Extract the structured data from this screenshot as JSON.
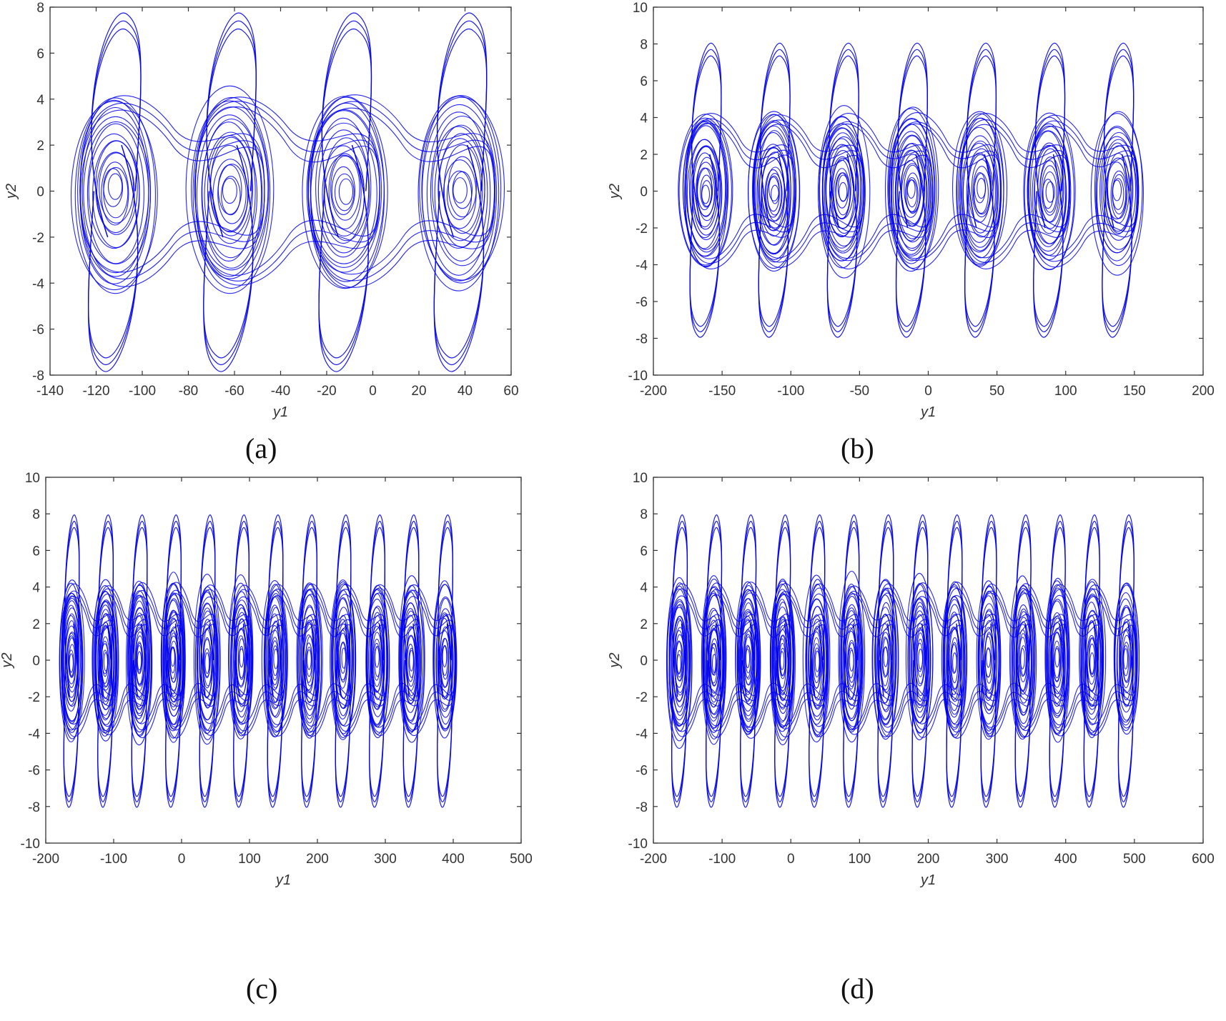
{
  "figure": {
    "background": "#ffffff",
    "line_color": "#0000ee",
    "axis_color": "#333333"
  },
  "chart_data": [
    {
      "id": "a",
      "caption": "(a)",
      "type": "line",
      "title": "",
      "xlabel": "y1",
      "ylabel": "y2",
      "xlim": [
        -140,
        60
      ],
      "ylim": [
        -8,
        8
      ],
      "xticks": [
        "-140",
        "-120",
        "-100",
        "-80",
        "-60",
        "-40",
        "-20",
        "0",
        "20",
        "40",
        "60"
      ],
      "yticks": [
        "-8",
        "-6",
        "-4",
        "-2",
        "0",
        "2",
        "4",
        "6",
        "8"
      ],
      "grid": false,
      "legend": null,
      "description": "Multi-scroll chaotic attractor phase portrait (y1 vs y2) with 4 scrolls",
      "scroll_centers_y1": [
        -112,
        -62,
        -12,
        38
      ],
      "y2_peak_approx": 7.7,
      "y2_trough_approx": -7.8
    },
    {
      "id": "b",
      "caption": "(b)",
      "type": "line",
      "title": "",
      "xlabel": "y1",
      "ylabel": "y2",
      "xlim": [
        -200,
        200
      ],
      "ylim": [
        -10,
        10
      ],
      "xticks": [
        "-200",
        "-150",
        "-100",
        "-50",
        "0",
        "50",
        "100",
        "150",
        "200"
      ],
      "yticks": [
        "-10",
        "-8",
        "-6",
        "-4",
        "-2",
        "0",
        "2",
        "4",
        "6",
        "8",
        "10"
      ],
      "grid": false,
      "legend": null,
      "description": "Multi-scroll chaotic attractor phase portrait (y1 vs y2) with 7 scrolls",
      "scroll_centers_y1": [
        -162,
        -112,
        -62,
        -12,
        38,
        88,
        138
      ],
      "y2_peak_approx": 8.0,
      "y2_trough_approx": -7.9
    },
    {
      "id": "c",
      "caption": "(c)",
      "type": "line",
      "title": "",
      "xlabel": "y1",
      "ylabel": "y2",
      "xlim": [
        -200,
        500
      ],
      "ylim": [
        -10,
        10
      ],
      "xticks": [
        "-200",
        "-100",
        "0",
        "100",
        "200",
        "300",
        "400",
        "500"
      ],
      "yticks": [
        "-10",
        "-8",
        "-6",
        "-4",
        "-2",
        "0",
        "2",
        "4",
        "6",
        "8",
        "10"
      ],
      "grid": false,
      "legend": null,
      "description": "Multi-scroll chaotic attractor phase portrait (y1 vs y2) with 12 scrolls",
      "scroll_centers_y1": [
        -162,
        -112,
        -62,
        -12,
        38,
        88,
        138,
        188,
        238,
        288,
        338,
        388
      ],
      "y2_peak_approx": 7.9,
      "y2_trough_approx": -8.0
    },
    {
      "id": "d",
      "caption": "(d)",
      "type": "line",
      "title": "",
      "xlabel": "y1",
      "ylabel": "y2",
      "xlim": [
        -200,
        600
      ],
      "ylim": [
        -10,
        10
      ],
      "xticks": [
        "-200",
        "-100",
        "0",
        "100",
        "200",
        "300",
        "400",
        "500",
        "600"
      ],
      "yticks": [
        "-10",
        "-8",
        "-6",
        "-4",
        "-2",
        "0",
        "2",
        "4",
        "6",
        "8",
        "10"
      ],
      "grid": false,
      "legend": null,
      "description": "Multi-scroll chaotic attractor phase portrait (y1 vs y2) with 14 scrolls",
      "scroll_centers_y1": [
        -162,
        -112,
        -62,
        -12,
        38,
        88,
        138,
        188,
        238,
        288,
        338,
        388,
        438,
        488
      ],
      "y2_peak_approx": 7.9,
      "y2_trough_approx": -8.0
    }
  ]
}
